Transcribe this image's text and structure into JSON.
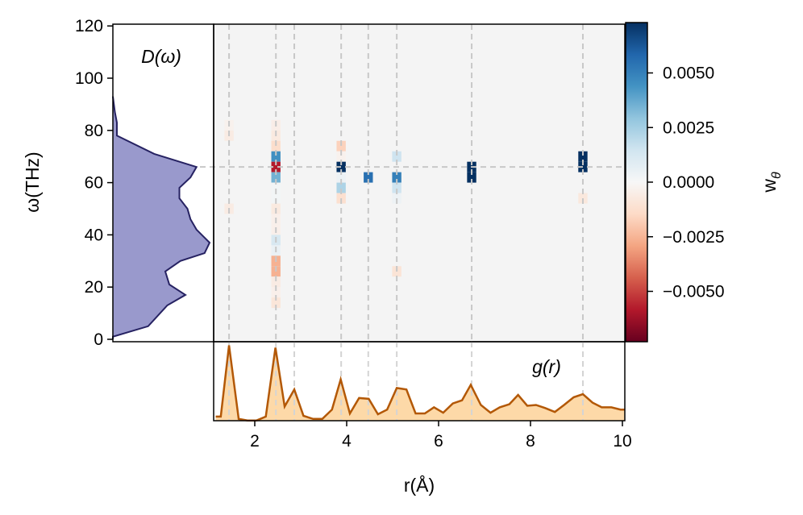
{
  "chart_data": [
    {
      "type": "heatmap",
      "xlabel": "r(Å)",
      "ylabel": "ω(THz)",
      "xlim": [
        1.1,
        10.05
      ],
      "ylim": [
        0,
        120
      ],
      "x_ticks": [
        "2",
        "4",
        "6",
        "8",
        "10"
      ],
      "y_ticks": [
        "0",
        "20",
        "40",
        "60",
        "80",
        "100",
        "120"
      ],
      "colormap": "RdBu_r",
      "background_value": 0,
      "colorbar": {
        "label": "w",
        "label_subscript": "θ",
        "range": [
          -0.0073,
          0.0073
        ],
        "tick_values": [
          0.005,
          0.0025,
          0,
          -0.0025,
          -0.005
        ],
        "tick_labels": [
          "0.0050",
          "0.0025",
          "0.0000",
          "−0.0025",
          "−0.0050"
        ]
      },
      "cell_size": {
        "r": 0.2,
        "omega": 4
      },
      "reference_lines": {
        "r": [
          1.44,
          2.46,
          2.86,
          3.88,
          4.47,
          5.09,
          6.72,
          9.14
        ],
        "omega": [
          66
        ]
      },
      "cells": [
        {
          "r": 1.44,
          "omega": 82,
          "w": -0.0003
        },
        {
          "r": 1.44,
          "omega": 78,
          "w": -0.0006
        },
        {
          "r": 1.44,
          "omega": 50,
          "w": -0.0006
        },
        {
          "r": 2.46,
          "omega": 82,
          "w": -0.0005
        },
        {
          "r": 2.46,
          "omega": 78,
          "w": -0.0007
        },
        {
          "r": 2.46,
          "omega": 74,
          "w": -0.0013
        },
        {
          "r": 2.46,
          "omega": 70,
          "w": 0.0045
        },
        {
          "r": 2.46,
          "omega": 66,
          "w": -0.0058
        },
        {
          "r": 2.46,
          "omega": 62,
          "w": 0.0035
        },
        {
          "r": 2.46,
          "omega": 58,
          "w": 0.0002
        },
        {
          "r": 2.46,
          "omega": 54,
          "w": 0.0002
        },
        {
          "r": 2.46,
          "omega": 50,
          "w": -0.0007
        },
        {
          "r": 2.46,
          "omega": 46,
          "w": -0.0004
        },
        {
          "r": 2.46,
          "omega": 42,
          "w": -0.0004
        },
        {
          "r": 2.46,
          "omega": 38,
          "w": 0.0012
        },
        {
          "r": 2.46,
          "omega": 34,
          "w": 0.0005
        },
        {
          "r": 2.46,
          "omega": 30,
          "w": -0.0026
        },
        {
          "r": 2.46,
          "omega": 26,
          "w": -0.0026
        },
        {
          "r": 2.46,
          "omega": 22,
          "w": -0.0006
        },
        {
          "r": 2.46,
          "omega": 18,
          "w": -0.0004
        },
        {
          "r": 2.46,
          "omega": 14,
          "w": -0.0009
        },
        {
          "r": 3.88,
          "omega": 74,
          "w": -0.0017
        },
        {
          "r": 3.88,
          "omega": 70,
          "w": -0.0003
        },
        {
          "r": 3.88,
          "omega": 66,
          "w": 0.0073
        },
        {
          "r": 3.88,
          "omega": 62,
          "w": 0.0004
        },
        {
          "r": 3.88,
          "omega": 58,
          "w": 0.0023
        },
        {
          "r": 3.88,
          "omega": 54,
          "w": -0.0012
        },
        {
          "r": 4.47,
          "omega": 62,
          "w": 0.0055
        },
        {
          "r": 5.09,
          "omega": 70,
          "w": 0.0015
        },
        {
          "r": 5.09,
          "omega": 62,
          "w": 0.005
        },
        {
          "r": 5.09,
          "omega": 58,
          "w": 0.0015
        },
        {
          "r": 5.09,
          "omega": 54,
          "w": 0.0004
        },
        {
          "r": 5.09,
          "omega": 26,
          "w": -0.001
        },
        {
          "r": 6.72,
          "omega": 66,
          "w": 0.0073
        },
        {
          "r": 6.72,
          "omega": 62,
          "w": 0.0073
        },
        {
          "r": 9.14,
          "omega": 70,
          "w": 0.0073
        },
        {
          "r": 9.14,
          "omega": 66,
          "w": 0.0073
        },
        {
          "r": 9.14,
          "omega": 54,
          "w": -0.0008
        }
      ]
    },
    {
      "type": "area",
      "label": "D(ω)",
      "orientation": "horizontal",
      "color": "#9999cc",
      "line_color": "#262262",
      "omega": [
        0,
        1,
        5,
        13,
        17,
        21,
        26,
        30,
        33,
        37,
        42,
        46,
        50,
        54,
        58,
        62,
        66,
        71,
        78,
        83,
        87,
        93
      ],
      "D": [
        0,
        0,
        0.35,
        0.54,
        0.72,
        0.56,
        0.52,
        0.67,
        0.91,
        0.96,
        0.83,
        0.77,
        0.74,
        0.66,
        0.66,
        0.77,
        0.83,
        0.41,
        0.04,
        0.04,
        0.02,
        0
      ]
    },
    {
      "type": "area",
      "label": "g(r)",
      "color": "#fdd9a8",
      "line_color": "#b35806",
      "r": [
        1.15,
        1.26,
        1.44,
        1.65,
        1.84,
        2.04,
        2.24,
        2.45,
        2.65,
        2.86,
        3.06,
        3.27,
        3.47,
        3.68,
        3.87,
        4.07,
        4.27,
        4.48,
        4.68,
        4.88,
        5.09,
        5.3,
        5.5,
        5.7,
        5.9,
        6.1,
        6.31,
        6.51,
        6.7,
        6.92,
        7.13,
        7.33,
        7.54,
        7.73,
        7.93,
        8.12,
        8.32,
        8.53,
        8.73,
        8.94,
        9.14,
        9.35,
        9.55,
        9.76,
        9.96,
        10.05
      ],
      "g": [
        0.05,
        0.05,
        0.97,
        0.02,
        0,
        0,
        0.05,
        0.94,
        0.18,
        0.4,
        0.06,
        0.02,
        0.02,
        0.14,
        0.53,
        0.09,
        0.29,
        0.28,
        0.08,
        0.14,
        0.42,
        0.4,
        0.09,
        0.09,
        0.17,
        0.1,
        0.22,
        0.26,
        0.46,
        0.2,
        0.1,
        0.17,
        0.21,
        0.33,
        0.19,
        0.2,
        0.16,
        0.11,
        0.2,
        0.3,
        0.34,
        0.23,
        0.17,
        0.17,
        0.14,
        0.14
      ]
    }
  ]
}
